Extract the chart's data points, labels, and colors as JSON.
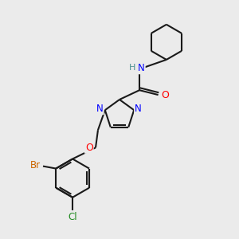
{
  "background_color": "#ebebeb",
  "bond_color": "#1a1a1a",
  "atom_colors": {
    "N": "#0000ff",
    "O": "#ff0000",
    "Br": "#cc6600",
    "Cl": "#228b22",
    "H": "#4a9090",
    "C": "#1a1a1a"
  },
  "figsize": [
    3.0,
    3.0
  ],
  "dpi": 100
}
